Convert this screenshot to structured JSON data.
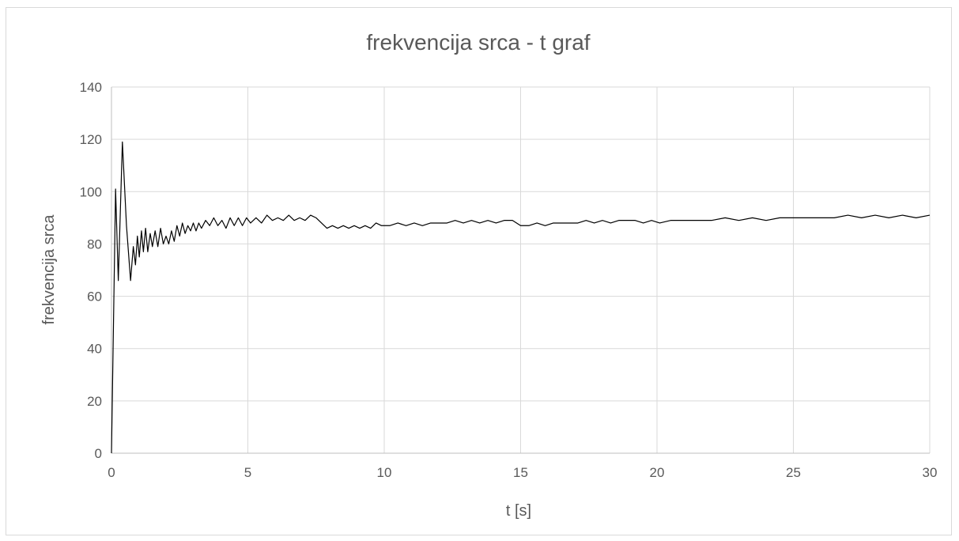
{
  "chart_data": {
    "type": "line",
    "title": "frekvencija srca - t graf",
    "xlabel": "t [s]",
    "ylabel": "frekvencija srca",
    "xlim": [
      0,
      30
    ],
    "ylim": [
      0,
      140
    ],
    "xticks": [
      0,
      5,
      10,
      15,
      20,
      25,
      30
    ],
    "yticks": [
      0,
      20,
      40,
      60,
      80,
      100,
      120,
      140
    ],
    "grid": true,
    "legend": "none",
    "line_color": "#000000",
    "series": [
      {
        "values_x": [
          0.0,
          0.15,
          0.25,
          0.4,
          0.55,
          0.7,
          0.8,
          0.88,
          0.95,
          1.02,
          1.1,
          1.17,
          1.25,
          1.33,
          1.42,
          1.5,
          1.6,
          1.7,
          1.8,
          1.9,
          2.0,
          2.1,
          2.2,
          2.3,
          2.4,
          2.5,
          2.6,
          2.7,
          2.8,
          2.9,
          3.0,
          3.1,
          3.2,
          3.3,
          3.45,
          3.6,
          3.75,
          3.9,
          4.05,
          4.2,
          4.35,
          4.5,
          4.65,
          4.8,
          4.95,
          5.1,
          5.3,
          5.5,
          5.7,
          5.9,
          6.1,
          6.3,
          6.5,
          6.7,
          6.9,
          7.1,
          7.3,
          7.5,
          7.7,
          7.9,
          8.1,
          8.3,
          8.5,
          8.7,
          8.9,
          9.1,
          9.3,
          9.5,
          9.7,
          9.9,
          10.2,
          10.5,
          10.8,
          11.1,
          11.4,
          11.7,
          12.0,
          12.3,
          12.6,
          12.9,
          13.2,
          13.5,
          13.8,
          14.1,
          14.4,
          14.7,
          15.0,
          15.3,
          15.6,
          15.9,
          16.2,
          16.5,
          16.8,
          17.1,
          17.4,
          17.7,
          18.0,
          18.3,
          18.6,
          18.9,
          19.2,
          19.5,
          19.8,
          20.1,
          20.5,
          21.0,
          21.5,
          22.0,
          22.5,
          23.0,
          23.5,
          24.0,
          24.5,
          25.0,
          25.5,
          26.0,
          26.5,
          27.0,
          27.5,
          28.0,
          28.5,
          29.0,
          29.5,
          30.0
        ],
        "values_y": [
          0,
          101,
          66,
          119,
          87,
          66,
          79,
          72,
          83,
          75,
          85,
          77,
          86,
          77,
          84,
          79,
          85,
          79,
          86,
          80,
          83,
          80,
          85,
          81,
          87,
          83,
          88,
          84,
          87,
          85,
          88,
          85,
          88,
          86,
          89,
          87,
          90,
          87,
          89,
          86,
          90,
          87,
          90,
          87,
          90,
          88,
          90,
          88,
          91,
          89,
          90,
          89,
          91,
          89,
          90,
          89,
          91,
          90,
          88,
          86,
          87,
          86,
          87,
          86,
          87,
          86,
          87,
          86,
          88,
          87,
          87,
          88,
          87,
          88,
          87,
          88,
          88,
          88,
          89,
          88,
          89,
          88,
          89,
          88,
          89,
          89,
          87,
          87,
          88,
          87,
          88,
          88,
          88,
          88,
          89,
          88,
          89,
          88,
          89,
          89,
          89,
          88,
          89,
          88,
          89,
          89,
          89,
          89,
          90,
          89,
          90,
          89,
          90,
          90,
          90,
          90,
          90,
          91,
          90,
          91,
          90,
          91,
          90,
          91
        ]
      }
    ]
  }
}
